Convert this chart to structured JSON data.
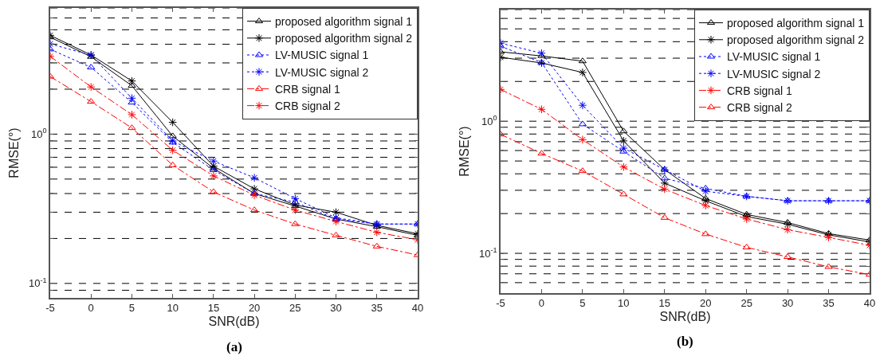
{
  "chart_data": [
    {
      "type": "line",
      "xlabel": "SNR(dB)",
      "ylabel": "RMSE(°)",
      "annotations": [
        "(a)"
      ],
      "log": "y",
      "grid": "y",
      "legend": "top right",
      "x": [
        -5,
        0,
        5,
        10,
        15,
        20,
        25,
        30,
        35,
        40
      ],
      "xlim": [
        -5,
        40
      ],
      "xticks": [
        -5,
        0,
        5,
        10,
        15,
        20,
        25,
        30,
        35,
        40
      ],
      "ylim": [
        0.08,
        7
      ],
      "yticks": [
        {
          "value": 0.09,
          "label": null
        },
        {
          "value": 0.1,
          "label": "10$^{-1}$"
        },
        {
          "value": 0.2,
          "label": null
        },
        {
          "value": 0.3,
          "label": null
        },
        {
          "value": 0.4,
          "label": null
        },
        {
          "value": 0.5,
          "label": null
        },
        {
          "value": 0.6,
          "label": null
        },
        {
          "value": 0.7,
          "label": null
        },
        {
          "value": 0.8,
          "label": null
        },
        {
          "value": 0.9,
          "label": null
        },
        {
          "value": 1,
          "label": "10$^{0}$"
        },
        {
          "value": 2,
          "label": null
        },
        {
          "value": 3,
          "label": null
        },
        {
          "value": 4,
          "label": null
        },
        {
          "value": 5,
          "label": null
        },
        {
          "value": 6,
          "label": null
        },
        {
          "value": 7,
          "label": null
        }
      ],
      "series": [
        {
          "name": "proposed algorithm signal 1",
          "color": "#000000",
          "marker": "triangle",
          "line_style": "solid",
          "values": [
            4.46,
            3.3,
            2.11,
            0.97,
            0.59,
            0.4,
            0.33,
            0.27,
            0.24,
            0.21
          ]
        },
        {
          "name": "proposed algorithm signal 2",
          "color": "#000000",
          "marker": "cross",
          "line_style": "solid",
          "values": [
            4.59,
            3.39,
            2.27,
            1.2,
            0.61,
            0.43,
            0.335,
            0.3,
            0.245,
            0.215
          ]
        },
        {
          "name": "LV-MUSIC signal 1",
          "color": "#0000ff",
          "marker": "triangle",
          "line_style": "dotted",
          "values": [
            3.7,
            2.8,
            1.63,
            0.88,
            0.575,
            0.4,
            0.35,
            0.27,
            0.25,
            0.25
          ]
        },
        {
          "name": "LV-MUSIC signal 2",
          "color": "#0000ff",
          "marker": "cross",
          "line_style": "dotted",
          "values": [
            4.02,
            3.38,
            1.74,
            0.9,
            0.66,
            0.51,
            0.37,
            0.275,
            0.25,
            0.25
          ]
        },
        {
          "name": "CRB signal 1",
          "color": "#ff0000",
          "marker": "triangle",
          "line_style": "dashdot",
          "values": [
            2.43,
            1.65,
            1.1,
            0.62,
            0.41,
            0.31,
            0.25,
            0.21,
            0.177,
            0.155
          ]
        },
        {
          "name": "CRB signal 2",
          "color": "#ff0000",
          "marker": "cross",
          "line_style": "dashdot",
          "values": [
            3.32,
            2.07,
            1.35,
            0.78,
            0.525,
            0.39,
            0.31,
            0.26,
            0.22,
            0.196
          ]
        }
      ]
    },
    {
      "type": "line",
      "xlabel": "SNR(dB)",
      "ylabel": "RMSE(°)",
      "annotations": [
        "(b)"
      ],
      "log": "y",
      "grid": "y",
      "legend": "top right",
      "x": [
        -5,
        0,
        5,
        10,
        15,
        20,
        25,
        30,
        35,
        40
      ],
      "xlim": [
        -5,
        40
      ],
      "xticks": [
        -5,
        0,
        5,
        10,
        15,
        20,
        25,
        30,
        35,
        40
      ],
      "ylim": [
        0.05,
        7
      ],
      "yticks": [
        {
          "value": 0.06,
          "label": null
        },
        {
          "value": 0.07,
          "label": null
        },
        {
          "value": 0.08,
          "label": null
        },
        {
          "value": 0.09,
          "label": null
        },
        {
          "value": 0.1,
          "label": "10$^{-1}$"
        },
        {
          "value": 0.2,
          "label": null
        },
        {
          "value": 0.3,
          "label": null
        },
        {
          "value": 0.4,
          "label": null
        },
        {
          "value": 0.5,
          "label": null
        },
        {
          "value": 0.6,
          "label": null
        },
        {
          "value": 0.7,
          "label": null
        },
        {
          "value": 0.8,
          "label": null
        },
        {
          "value": 0.9,
          "label": null
        },
        {
          "value": 1,
          "label": "10$^{0}$"
        },
        {
          "value": 2,
          "label": null
        },
        {
          "value": 3,
          "label": null
        },
        {
          "value": 4,
          "label": null
        },
        {
          "value": 5,
          "label": null
        },
        {
          "value": 6,
          "label": null
        },
        {
          "value": 7,
          "label": null
        }
      ],
      "series": [
        {
          "name": "proposed algorithm signal 1",
          "color": "#000000",
          "marker": "triangle",
          "line_style": "solid",
          "values": [
            3.35,
            3.12,
            2.85,
            0.84,
            0.43,
            0.26,
            0.197,
            0.171,
            0.141,
            0.126
          ]
        },
        {
          "name": "proposed algorithm signal 2",
          "color": "#000000",
          "marker": "cross",
          "line_style": "solid",
          "values": [
            3.05,
            2.76,
            2.34,
            0.71,
            0.34,
            0.25,
            0.19,
            0.166,
            0.138,
            0.122
          ]
        },
        {
          "name": "LV-MUSIC signal 1",
          "color": "#0000ff",
          "marker": "triangle",
          "line_style": "dotted",
          "values": [
            3.7,
            2.78,
            0.95,
            0.59,
            0.37,
            0.31,
            0.27,
            0.25,
            0.25,
            0.25
          ]
        },
        {
          "name": "LV-MUSIC signal 2",
          "color": "#0000ff",
          "marker": "cross",
          "line_style": "dotted",
          "values": [
            3.9,
            3.27,
            1.32,
            0.625,
            0.43,
            0.295,
            0.27,
            0.25,
            0.25,
            0.25
          ]
        },
        {
          "name": "CRB signal 1",
          "color": "#ff0000",
          "marker": "cross",
          "line_style": "dashdot",
          "values": [
            1.74,
            1.23,
            0.725,
            0.45,
            0.306,
            0.23,
            0.182,
            0.151,
            0.132,
            0.115
          ]
        },
        {
          "name": "CRB signal 2",
          "color": "#ff0000",
          "marker": "triangle",
          "line_style": "dashdot",
          "values": [
            0.795,
            0.57,
            0.42,
            0.28,
            0.186,
            0.14,
            0.111,
            0.094,
            0.079,
            0.069
          ]
        }
      ]
    }
  ]
}
